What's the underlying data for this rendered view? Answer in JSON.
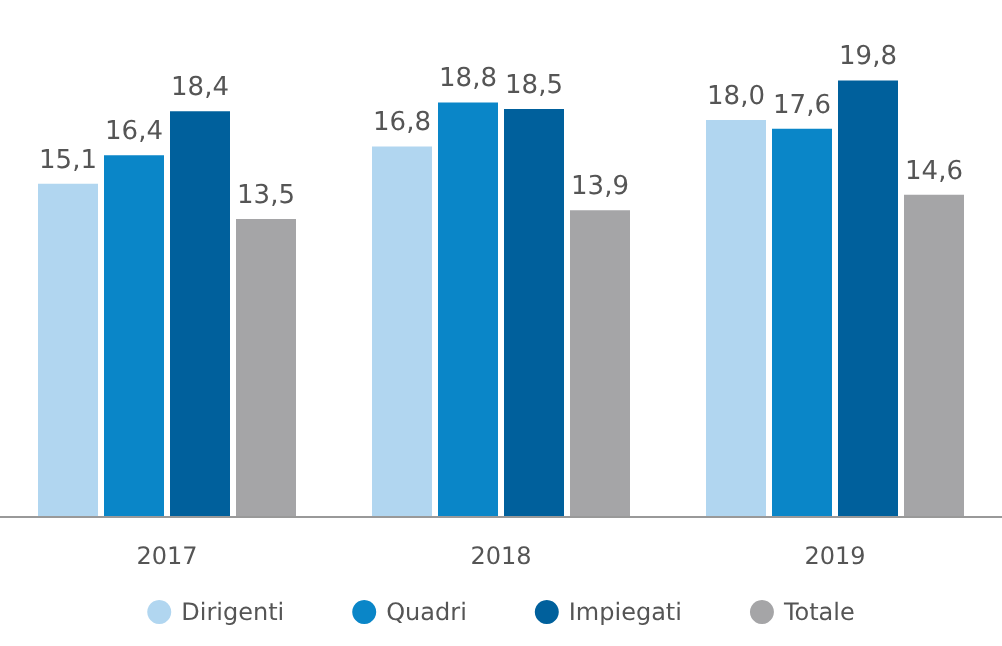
{
  "chart_data": {
    "type": "bar",
    "categories": [
      "2017",
      "2018",
      "2019"
    ],
    "series": [
      {
        "name": "Dirigenti",
        "color": "#b1d6f0",
        "values": [
          15.1,
          16.8,
          18.0
        ],
        "value_labels": [
          "15,1",
          "16,8",
          "18,0"
        ]
      },
      {
        "name": "Quadri",
        "color": "#0a86c8",
        "values": [
          16.4,
          18.8,
          17.6
        ],
        "value_labels": [
          "16,4",
          "18,8",
          "17,6"
        ]
      },
      {
        "name": "Impiegati",
        "color": "#00609c",
        "values": [
          18.4,
          18.5,
          19.8
        ],
        "value_labels": [
          "18,4",
          "18,5",
          "19,8"
        ]
      },
      {
        "name": "Totale",
        "color": "#a5a5a7",
        "values": [
          13.5,
          13.9,
          14.6
        ],
        "value_labels": [
          "13,5",
          "13,9",
          "14,6"
        ]
      }
    ],
    "grid": false,
    "legend": "bottom"
  }
}
